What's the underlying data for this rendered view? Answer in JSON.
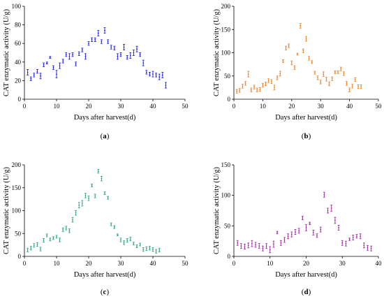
{
  "chart_data": [
    {
      "type": "scatter",
      "panel_label": "a",
      "color": "#1a1aff",
      "xlabel": "Days after harvest(d)",
      "ylabel": "CAT enzymatic activity (U/g)",
      "xlim": [
        0,
        50
      ],
      "ylim": [
        0,
        100
      ],
      "xticks": [
        0,
        10,
        20,
        30,
        40,
        50
      ],
      "yticks": [
        0,
        20,
        40,
        60,
        80,
        100
      ],
      "points": [
        {
          "x": 1,
          "y": 29,
          "err": 3
        },
        {
          "x": 2,
          "y": 22,
          "err": 2
        },
        {
          "x": 3,
          "y": 26,
          "err": 2
        },
        {
          "x": 4,
          "y": 30,
          "err": 2
        },
        {
          "x": 5,
          "y": 25,
          "err": 3
        },
        {
          "x": 6,
          "y": 37,
          "err": 2
        },
        {
          "x": 7,
          "y": 39,
          "err": 1
        },
        {
          "x": 8,
          "y": 45,
          "err": 1
        },
        {
          "x": 9,
          "y": 34,
          "err": 2
        },
        {
          "x": 10,
          "y": 27,
          "err": 4
        },
        {
          "x": 11,
          "y": 36,
          "err": 3
        },
        {
          "x": 12,
          "y": 41,
          "err": 2
        },
        {
          "x": 13,
          "y": 48,
          "err": 2
        },
        {
          "x": 14,
          "y": 46,
          "err": 3
        },
        {
          "x": 15,
          "y": 48,
          "err": 2
        },
        {
          "x": 16,
          "y": 38,
          "err": 2
        },
        {
          "x": 17,
          "y": 49,
          "err": 2
        },
        {
          "x": 18,
          "y": 53,
          "err": 2
        },
        {
          "x": 19,
          "y": 46,
          "err": 3
        },
        {
          "x": 20,
          "y": 60,
          "err": 2
        },
        {
          "x": 21,
          "y": 64,
          "err": 2
        },
        {
          "x": 22,
          "y": 64,
          "err": 2
        },
        {
          "x": 23,
          "y": 71,
          "err": 3
        },
        {
          "x": 24,
          "y": 62,
          "err": 2
        },
        {
          "x": 25,
          "y": 74,
          "err": 3
        },
        {
          "x": 26,
          "y": 62,
          "err": 2
        },
        {
          "x": 27,
          "y": 56,
          "err": 2
        },
        {
          "x": 28,
          "y": 55,
          "err": 2
        },
        {
          "x": 29,
          "y": 46,
          "err": 3
        },
        {
          "x": 30,
          "y": 48,
          "err": 2
        },
        {
          "x": 31,
          "y": 56,
          "err": 3
        },
        {
          "x": 32,
          "y": 45,
          "err": 2
        },
        {
          "x": 33,
          "y": 47,
          "err": 3
        },
        {
          "x": 34,
          "y": 50,
          "err": 3
        },
        {
          "x": 35,
          "y": 54,
          "err": 3
        },
        {
          "x": 36,
          "y": 48,
          "err": 2
        },
        {
          "x": 37,
          "y": 39,
          "err": 3
        },
        {
          "x": 38,
          "y": 29,
          "err": 2
        },
        {
          "x": 39,
          "y": 27,
          "err": 2
        },
        {
          "x": 40,
          "y": 27,
          "err": 3
        },
        {
          "x": 41,
          "y": 26,
          "err": 2
        },
        {
          "x": 42,
          "y": 24,
          "err": 3
        },
        {
          "x": 43,
          "y": 26,
          "err": 3
        },
        {
          "x": 44,
          "y": 15,
          "err": 3
        }
      ]
    },
    {
      "type": "scatter",
      "panel_label": "b",
      "color": "#f07f20",
      "xlabel": "Days after harvest(d)",
      "ylabel": "CAT enzymatic activity (U/g)",
      "xlim": [
        0,
        50
      ],
      "ylim": [
        0,
        200
      ],
      "xticks": [
        0,
        10,
        20,
        30,
        40,
        50
      ],
      "yticks": [
        0,
        50,
        100,
        150,
        200
      ],
      "points": [
        {
          "x": 1,
          "y": 17,
          "err": 4
        },
        {
          "x": 2,
          "y": 19,
          "err": 4
        },
        {
          "x": 3,
          "y": 28,
          "err": 4
        },
        {
          "x": 4,
          "y": 34,
          "err": 4
        },
        {
          "x": 5,
          "y": 54,
          "err": 6
        },
        {
          "x": 6,
          "y": 20,
          "err": 4
        },
        {
          "x": 7,
          "y": 26,
          "err": 4
        },
        {
          "x": 8,
          "y": 20,
          "err": 4
        },
        {
          "x": 9,
          "y": 21,
          "err": 4
        },
        {
          "x": 10,
          "y": 30,
          "err": 4
        },
        {
          "x": 11,
          "y": 33,
          "err": 4
        },
        {
          "x": 12,
          "y": 40,
          "err": 4
        },
        {
          "x": 13,
          "y": 38,
          "err": 4
        },
        {
          "x": 14,
          "y": 25,
          "err": 5
        },
        {
          "x": 15,
          "y": 46,
          "err": 4
        },
        {
          "x": 16,
          "y": 55,
          "err": 5
        },
        {
          "x": 17,
          "y": 82,
          "err": 3
        },
        {
          "x": 18,
          "y": 110,
          "err": 4
        },
        {
          "x": 19,
          "y": 115,
          "err": 4
        },
        {
          "x": 20,
          "y": 78,
          "err": 4
        },
        {
          "x": 21,
          "y": 68,
          "err": 4
        },
        {
          "x": 22,
          "y": 97,
          "err": 2
        },
        {
          "x": 23,
          "y": 158,
          "err": 5
        },
        {
          "x": 24,
          "y": 104,
          "err": 4
        },
        {
          "x": 25,
          "y": 130,
          "err": 5
        },
        {
          "x": 26,
          "y": 88,
          "err": 4
        },
        {
          "x": 27,
          "y": 80,
          "err": 3
        },
        {
          "x": 28,
          "y": 57,
          "err": 3
        },
        {
          "x": 29,
          "y": 46,
          "err": 4
        },
        {
          "x": 30,
          "y": 37,
          "err": 4
        },
        {
          "x": 31,
          "y": 54,
          "err": 5
        },
        {
          "x": 32,
          "y": 43,
          "err": 4
        },
        {
          "x": 33,
          "y": 33,
          "err": 4
        },
        {
          "x": 34,
          "y": 44,
          "err": 4
        },
        {
          "x": 35,
          "y": 58,
          "err": 3
        },
        {
          "x": 36,
          "y": 58,
          "err": 3
        },
        {
          "x": 37,
          "y": 65,
          "err": 4
        },
        {
          "x": 38,
          "y": 55,
          "err": 4
        },
        {
          "x": 39,
          "y": 34,
          "err": 4
        },
        {
          "x": 40,
          "y": 20,
          "err": 4
        },
        {
          "x": 41,
          "y": 28,
          "err": 4
        },
        {
          "x": 42,
          "y": 42,
          "err": 4
        },
        {
          "x": 43,
          "y": 27,
          "err": 4
        },
        {
          "x": 44,
          "y": 27,
          "err": 4
        }
      ]
    },
    {
      "type": "scatter",
      "panel_label": "c",
      "color": "#2aa77a",
      "xlabel": "Days after harvest(d)",
      "ylabel": "CAT enzymatic activity (U/g)",
      "xlim": [
        0,
        50
      ],
      "ylim": [
        0,
        200
      ],
      "xticks": [
        0,
        10,
        20,
        30,
        40,
        50
      ],
      "yticks": [
        0,
        50,
        100,
        150,
        200
      ],
      "points": [
        {
          "x": 1,
          "y": 14,
          "err": 4
        },
        {
          "x": 2,
          "y": 18,
          "err": 4
        },
        {
          "x": 3,
          "y": 24,
          "err": 4
        },
        {
          "x": 4,
          "y": 26,
          "err": 4
        },
        {
          "x": 5,
          "y": 16,
          "err": 4
        },
        {
          "x": 6,
          "y": 35,
          "err": 4
        },
        {
          "x": 7,
          "y": 46,
          "err": 3
        },
        {
          "x": 8,
          "y": 37,
          "err": 3
        },
        {
          "x": 9,
          "y": 40,
          "err": 3
        },
        {
          "x": 10,
          "y": 43,
          "err": 3
        },
        {
          "x": 11,
          "y": 36,
          "err": 4
        },
        {
          "x": 12,
          "y": 58,
          "err": 4
        },
        {
          "x": 13,
          "y": 62,
          "err": 4
        },
        {
          "x": 14,
          "y": 56,
          "err": 4
        },
        {
          "x": 15,
          "y": 80,
          "err": 5
        },
        {
          "x": 16,
          "y": 95,
          "err": 5
        },
        {
          "x": 17,
          "y": 112,
          "err": 6
        },
        {
          "x": 18,
          "y": 116,
          "err": 6
        },
        {
          "x": 19,
          "y": 133,
          "err": 5
        },
        {
          "x": 20,
          "y": 127,
          "err": 5
        },
        {
          "x": 21,
          "y": 155,
          "err": 3
        },
        {
          "x": 22,
          "y": 132,
          "err": 4
        },
        {
          "x": 23,
          "y": 186,
          "err": 4
        },
        {
          "x": 24,
          "y": 170,
          "err": 5
        },
        {
          "x": 25,
          "y": 138,
          "err": 3
        },
        {
          "x": 26,
          "y": 128,
          "err": 3
        },
        {
          "x": 27,
          "y": 70,
          "err": 3
        },
        {
          "x": 28,
          "y": 64,
          "err": 3
        },
        {
          "x": 29,
          "y": 47,
          "err": 2
        },
        {
          "x": 30,
          "y": 36,
          "err": 4
        },
        {
          "x": 31,
          "y": 30,
          "err": 4
        },
        {
          "x": 32,
          "y": 35,
          "err": 4
        },
        {
          "x": 33,
          "y": 38,
          "err": 4
        },
        {
          "x": 34,
          "y": 28,
          "err": 3
        },
        {
          "x": 35,
          "y": 22,
          "err": 3
        },
        {
          "x": 36,
          "y": 26,
          "err": 3
        },
        {
          "x": 37,
          "y": 15,
          "err": 4
        },
        {
          "x": 38,
          "y": 17,
          "err": 4
        },
        {
          "x": 39,
          "y": 18,
          "err": 4
        },
        {
          "x": 40,
          "y": 15,
          "err": 4
        },
        {
          "x": 41,
          "y": 11,
          "err": 4
        },
        {
          "x": 42,
          "y": 14,
          "err": 4
        }
      ]
    },
    {
      "type": "scatter",
      "panel_label": "d",
      "color": "#a12aa0",
      "xlabel": "Days after harvest(d)",
      "ylabel": "CAT enzymatic activity (U/g)",
      "xlim": [
        0,
        40
      ],
      "ylim": [
        0,
        150
      ],
      "xticks": [
        0,
        10,
        20,
        30,
        40
      ],
      "yticks": [
        0,
        50,
        100,
        150
      ],
      "points": [
        {
          "x": 1,
          "y": 22,
          "err": 4
        },
        {
          "x": 2,
          "y": 17,
          "err": 4
        },
        {
          "x": 3,
          "y": 16,
          "err": 4
        },
        {
          "x": 4,
          "y": 18,
          "err": 4
        },
        {
          "x": 5,
          "y": 21,
          "err": 5
        },
        {
          "x": 6,
          "y": 19,
          "err": 4
        },
        {
          "x": 7,
          "y": 17,
          "err": 4
        },
        {
          "x": 8,
          "y": 13,
          "err": 4
        },
        {
          "x": 9,
          "y": 17,
          "err": 4
        },
        {
          "x": 10,
          "y": 11,
          "err": 5
        },
        {
          "x": 11,
          "y": 20,
          "err": 5
        },
        {
          "x": 12,
          "y": 39,
          "err": 2
        },
        {
          "x": 13,
          "y": 22,
          "err": 4
        },
        {
          "x": 14,
          "y": 27,
          "err": 4
        },
        {
          "x": 15,
          "y": 33,
          "err": 4
        },
        {
          "x": 16,
          "y": 36,
          "err": 4
        },
        {
          "x": 17,
          "y": 40,
          "err": 4
        },
        {
          "x": 18,
          "y": 42,
          "err": 4
        },
        {
          "x": 19,
          "y": 63,
          "err": 3
        },
        {
          "x": 20,
          "y": 47,
          "err": 5
        },
        {
          "x": 21,
          "y": 54,
          "err": 2
        },
        {
          "x": 22,
          "y": 39,
          "err": 4
        },
        {
          "x": 23,
          "y": 34,
          "err": 3
        },
        {
          "x": 24,
          "y": 44,
          "err": 4
        },
        {
          "x": 25,
          "y": 101,
          "err": 4
        },
        {
          "x": 26,
          "y": 75,
          "err": 4
        },
        {
          "x": 27,
          "y": 79,
          "err": 5
        },
        {
          "x": 28,
          "y": 59,
          "err": 5
        },
        {
          "x": 29,
          "y": 47,
          "err": 4
        },
        {
          "x": 30,
          "y": 22,
          "err": 4
        },
        {
          "x": 31,
          "y": 21,
          "err": 4
        },
        {
          "x": 32,
          "y": 28,
          "err": 2
        },
        {
          "x": 33,
          "y": 31,
          "err": 4
        },
        {
          "x": 34,
          "y": 33,
          "err": 3
        },
        {
          "x": 35,
          "y": 33,
          "err": 4
        },
        {
          "x": 36,
          "y": 18,
          "err": 4
        },
        {
          "x": 37,
          "y": 14,
          "err": 4
        },
        {
          "x": 38,
          "y": 13,
          "err": 4
        }
      ]
    }
  ]
}
